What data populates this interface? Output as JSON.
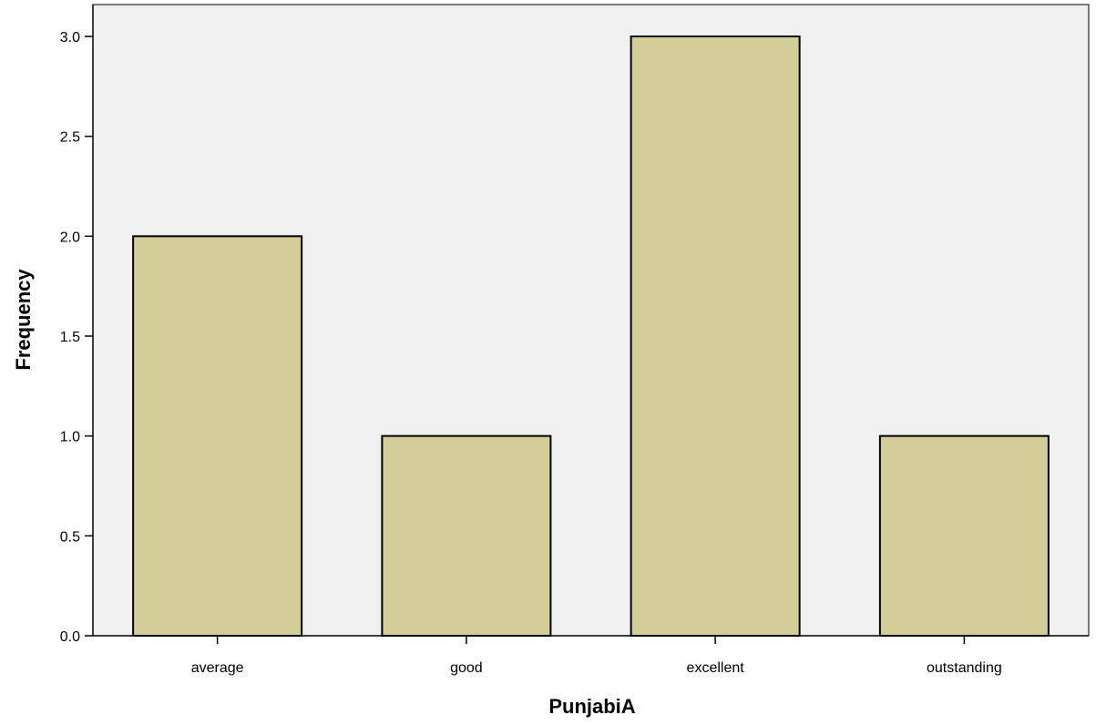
{
  "chart_data": {
    "type": "bar",
    "categories": [
      "average",
      "good",
      "excellent",
      "outstanding"
    ],
    "values": [
      2,
      1,
      3,
      1
    ],
    "xlabel": "PunjabiA",
    "ylabel": "Frequency",
    "ylim": [
      0,
      3.0
    ],
    "yticks": [
      "0.0",
      "0.5",
      "1.0",
      "1.5",
      "2.0",
      "2.5",
      "3.0"
    ],
    "grid": false,
    "bar_color": "#d3cd98",
    "plot_background": "#f0f0f0"
  }
}
